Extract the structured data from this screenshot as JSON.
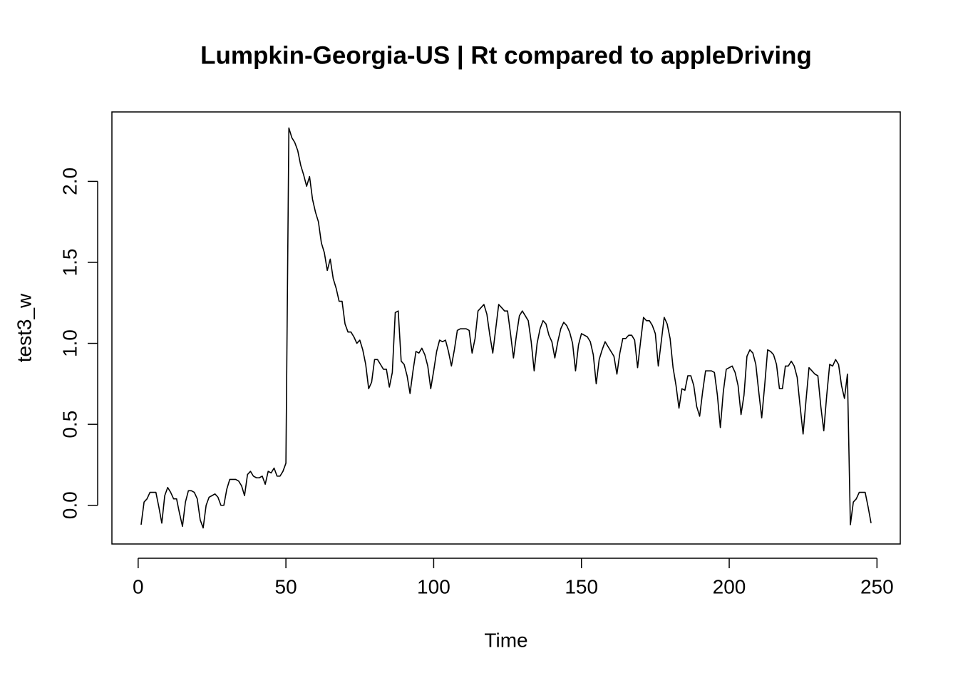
{
  "chart_data": {
    "type": "line",
    "title": "Lumpkin-Georgia-US | Rt compared to appleDriving",
    "x_label": "Time",
    "y_label": "test3_w",
    "color": "#000000",
    "x": [
      1,
      2,
      3,
      4,
      5,
      6,
      7,
      8,
      9,
      10,
      11,
      12,
      13,
      14,
      15,
      16,
      17,
      18,
      19,
      20,
      21,
      22,
      23,
      24,
      25,
      26,
      27,
      28,
      29,
      30,
      31,
      32,
      33,
      34,
      35,
      36,
      37,
      38,
      39,
      40,
      41,
      42,
      43,
      44,
      45,
      46,
      47,
      48,
      49,
      50,
      51,
      52,
      53,
      54,
      55,
      56,
      57,
      58,
      59,
      60,
      61,
      62,
      63,
      64,
      65,
      66,
      67,
      68,
      69,
      70,
      71,
      72,
      73,
      74,
      75,
      76,
      77,
      78,
      79,
      80,
      81,
      82,
      83,
      84,
      85,
      86,
      87,
      88,
      89,
      90,
      91,
      92,
      93,
      94,
      95,
      96,
      97,
      98,
      99,
      100,
      101,
      102,
      103,
      104,
      105,
      106,
      107,
      108,
      109,
      110,
      111,
      112,
      113,
      114,
      115,
      116,
      117,
      118,
      119,
      120,
      121,
      122,
      123,
      124,
      125,
      126,
      127,
      128,
      129,
      130,
      131,
      132,
      133,
      134,
      135,
      136,
      137,
      138,
      139,
      140,
      141,
      142,
      143,
      144,
      145,
      146,
      147,
      148,
      149,
      150,
      151,
      152,
      153,
      154,
      155,
      156,
      157,
      158,
      159,
      160,
      161,
      162,
      163,
      164,
      165,
      166,
      167,
      168,
      169,
      170,
      171,
      172,
      173,
      174,
      175,
      176,
      177,
      178,
      179,
      180,
      181,
      182,
      183,
      184,
      185,
      186,
      187,
      188,
      189,
      190,
      191,
      192,
      193,
      194,
      195,
      196,
      197,
      198,
      199,
      200,
      201,
      202,
      203,
      204,
      205,
      206,
      207,
      208,
      209,
      210,
      211,
      212,
      213,
      214,
      215,
      216,
      217,
      218,
      219,
      220,
      221,
      222,
      223,
      224,
      225,
      226,
      227,
      228,
      229,
      230,
      231,
      232,
      233,
      234,
      235,
      236,
      237,
      238,
      239,
      240,
      241,
      242,
      243,
      244,
      245,
      246,
      247,
      248
    ],
    "values": [
      -0.12,
      0.02,
      0.04,
      0.08,
      0.08,
      0.08,
      -0.01,
      -0.11,
      0.06,
      0.11,
      0.08,
      0.04,
      0.04,
      -0.05,
      -0.13,
      0.02,
      0.09,
      0.09,
      0.08,
      0.04,
      -0.09,
      -0.14,
      0.0,
      0.05,
      0.06,
      0.07,
      0.05,
      0.0,
      0.0,
      0.1,
      0.16,
      0.16,
      0.16,
      0.15,
      0.12,
      0.06,
      0.19,
      0.21,
      0.18,
      0.17,
      0.17,
      0.18,
      0.13,
      0.21,
      0.2,
      0.23,
      0.18,
      0.18,
      0.21,
      0.26,
      2.33,
      2.27,
      2.24,
      2.19,
      2.1,
      2.04,
      1.97,
      2.03,
      1.89,
      1.81,
      1.75,
      1.62,
      1.56,
      1.45,
      1.52,
      1.4,
      1.34,
      1.26,
      1.26,
      1.12,
      1.07,
      1.07,
      1.04,
      1.0,
      1.02,
      0.96,
      0.87,
      0.72,
      0.76,
      0.9,
      0.9,
      0.87,
      0.84,
      0.84,
      0.73,
      0.82,
      1.19,
      1.2,
      0.89,
      0.87,
      0.8,
      0.69,
      0.83,
      0.95,
      0.94,
      0.97,
      0.93,
      0.86,
      0.72,
      0.83,
      0.95,
      1.02,
      1.01,
      1.02,
      0.95,
      0.86,
      0.96,
      1.08,
      1.09,
      1.09,
      1.09,
      1.08,
      0.94,
      1.03,
      1.2,
      1.22,
      1.24,
      1.18,
      1.05,
      0.94,
      1.09,
      1.24,
      1.22,
      1.2,
      1.2,
      1.06,
      0.91,
      1.05,
      1.17,
      1.2,
      1.17,
      1.14,
      1.01,
      0.83,
      1.0,
      1.09,
      1.14,
      1.12,
      1.05,
      1.01,
      0.91,
      1.01,
      1.09,
      1.13,
      1.11,
      1.07,
      1.0,
      0.83,
      0.99,
      1.06,
      1.05,
      1.04,
      1.01,
      0.93,
      0.75,
      0.9,
      0.96,
      1.01,
      0.98,
      0.95,
      0.92,
      0.81,
      0.94,
      1.03,
      1.03,
      1.05,
      1.05,
      1.02,
      0.85,
      1.01,
      1.16,
      1.14,
      1.14,
      1.11,
      1.06,
      0.86,
      1.01,
      1.16,
      1.12,
      1.03,
      0.85,
      0.74,
      0.6,
      0.72,
      0.71,
      0.8,
      0.8,
      0.74,
      0.61,
      0.55,
      0.7,
      0.83,
      0.83,
      0.83,
      0.82,
      0.68,
      0.48,
      0.7,
      0.84,
      0.85,
      0.86,
      0.82,
      0.74,
      0.56,
      0.68,
      0.92,
      0.96,
      0.94,
      0.87,
      0.7,
      0.54,
      0.74,
      0.96,
      0.95,
      0.93,
      0.87,
      0.72,
      0.72,
      0.86,
      0.86,
      0.89,
      0.86,
      0.79,
      0.61,
      0.44,
      0.65,
      0.85,
      0.83,
      0.81,
      0.8,
      0.61,
      0.46,
      0.68,
      0.87,
      0.86,
      0.9,
      0.87,
      0.74,
      0.66,
      0.81,
      -0.12,
      0.02,
      0.04,
      0.08,
      0.08,
      0.08,
      -0.01,
      -0.11
    ],
    "xlim": [
      -8.88,
      257.88
    ],
    "ylim": [
      -0.2388,
      2.4288
    ],
    "xticks": [
      0,
      50,
      100,
      150,
      200,
      250
    ],
    "yticks": [
      {
        "value": 0,
        "label": "0.0"
      },
      {
        "value": 0.5,
        "label": "0.5"
      },
      {
        "value": 1,
        "label": "1.0"
      },
      {
        "value": 1.5,
        "label": "1.5"
      },
      {
        "value": 2,
        "label": "2.0"
      }
    ],
    "grid": false
  }
}
